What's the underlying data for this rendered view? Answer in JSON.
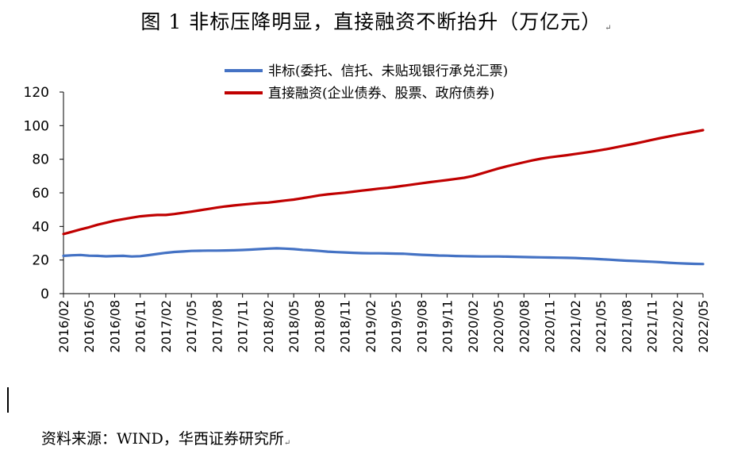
{
  "title": "图 1 非标压降明显，直接融资不断抬升（万亿元）",
  "title_mark": "↵",
  "source": "资料来源：WIND，华西证券研究所",
  "source_mark": "↵",
  "chart_data": {
    "type": "line",
    "title": "图 1 非标压降明显，直接融资不断抬升（万亿元）",
    "xlabel": "",
    "ylabel": "",
    "ylim": [
      0,
      120
    ],
    "yticks": [
      0,
      20,
      40,
      60,
      80,
      100,
      120
    ],
    "grid": false,
    "legend_position": "top-center",
    "x_tick_labels": [
      "2016/02",
      "2016/05",
      "2016/08",
      "2016/11",
      "2017/02",
      "2017/05",
      "2017/08",
      "2017/11",
      "2018/02",
      "2018/05",
      "2018/08",
      "2018/11",
      "2019/02",
      "2019/05",
      "2019/08",
      "2019/11",
      "2020/02",
      "2020/05",
      "2020/08",
      "2020/11",
      "2021/02",
      "2021/05",
      "2021/08",
      "2021/11",
      "2022/02",
      "2022/05"
    ],
    "x": [
      "2016/02",
      "2016/03",
      "2016/04",
      "2016/05",
      "2016/06",
      "2016/07",
      "2016/08",
      "2016/09",
      "2016/10",
      "2016/11",
      "2016/12",
      "2017/01",
      "2017/02",
      "2017/03",
      "2017/04",
      "2017/05",
      "2017/06",
      "2017/07",
      "2017/08",
      "2017/09",
      "2017/10",
      "2017/11",
      "2017/12",
      "2018/01",
      "2018/02",
      "2018/03",
      "2018/04",
      "2018/05",
      "2018/06",
      "2018/07",
      "2018/08",
      "2018/09",
      "2018/10",
      "2018/11",
      "2018/12",
      "2019/01",
      "2019/02",
      "2019/03",
      "2019/04",
      "2019/05",
      "2019/06",
      "2019/07",
      "2019/08",
      "2019/09",
      "2019/10",
      "2019/11",
      "2019/12",
      "2020/01",
      "2020/02",
      "2020/03",
      "2020/04",
      "2020/05",
      "2020/06",
      "2020/07",
      "2020/08",
      "2020/09",
      "2020/10",
      "2020/11",
      "2020/12",
      "2021/01",
      "2021/02",
      "2021/03",
      "2021/04",
      "2021/05",
      "2021/06",
      "2021/07",
      "2021/08",
      "2021/09",
      "2021/10",
      "2021/11",
      "2021/12",
      "2022/01",
      "2022/02",
      "2022/03",
      "2022/04",
      "2022/05"
    ],
    "series": [
      {
        "name": "非标(委托、信托、未贴现银行承兑汇票)",
        "color": "#4472C4",
        "values": [
          22.5,
          22.8,
          23.0,
          22.6,
          22.5,
          22.2,
          22.4,
          22.5,
          22.1,
          22.3,
          22.9,
          23.6,
          24.3,
          24.8,
          25.1,
          25.4,
          25.5,
          25.6,
          25.6,
          25.7,
          25.8,
          26.0,
          26.2,
          26.5,
          26.8,
          27.0,
          26.8,
          26.5,
          26.1,
          25.8,
          25.4,
          25.0,
          24.7,
          24.5,
          24.3,
          24.1,
          24.0,
          24.0,
          23.9,
          23.8,
          23.7,
          23.4,
          23.1,
          22.9,
          22.7,
          22.6,
          22.4,
          22.3,
          22.2,
          22.1,
          22.1,
          22.1,
          22.0,
          21.9,
          21.8,
          21.7,
          21.6,
          21.5,
          21.4,
          21.3,
          21.2,
          21.0,
          20.8,
          20.5,
          20.2,
          19.9,
          19.6,
          19.4,
          19.2,
          19.0,
          18.7,
          18.4,
          18.1,
          17.9,
          17.7,
          17.6
        ]
      },
      {
        "name": "直接融资(企业债券、股票、政府债券)",
        "color": "#C00000",
        "values": [
          35.5,
          36.8,
          38.2,
          39.5,
          41.0,
          42.2,
          43.4,
          44.3,
          45.2,
          46.0,
          46.5,
          46.8,
          46.8,
          47.4,
          48.1,
          48.8,
          49.6,
          50.4,
          51.2,
          51.9,
          52.5,
          53.0,
          53.5,
          53.9,
          54.2,
          54.8,
          55.4,
          56.0,
          56.8,
          57.6,
          58.5,
          59.1,
          59.6,
          60.1,
          60.7,
          61.3,
          61.9,
          62.5,
          63.0,
          63.6,
          64.3,
          65.0,
          65.7,
          66.4,
          67.0,
          67.6,
          68.3,
          69.0,
          70.0,
          71.5,
          73.0,
          74.5,
          75.8,
          77.0,
          78.2,
          79.3,
          80.3,
          81.1,
          81.8,
          82.4,
          83.1,
          83.8,
          84.6,
          85.4,
          86.3,
          87.3,
          88.3,
          89.3,
          90.4,
          91.5,
          92.6,
          93.6,
          94.6,
          95.5,
          96.4,
          97.3
        ]
      }
    ]
  }
}
